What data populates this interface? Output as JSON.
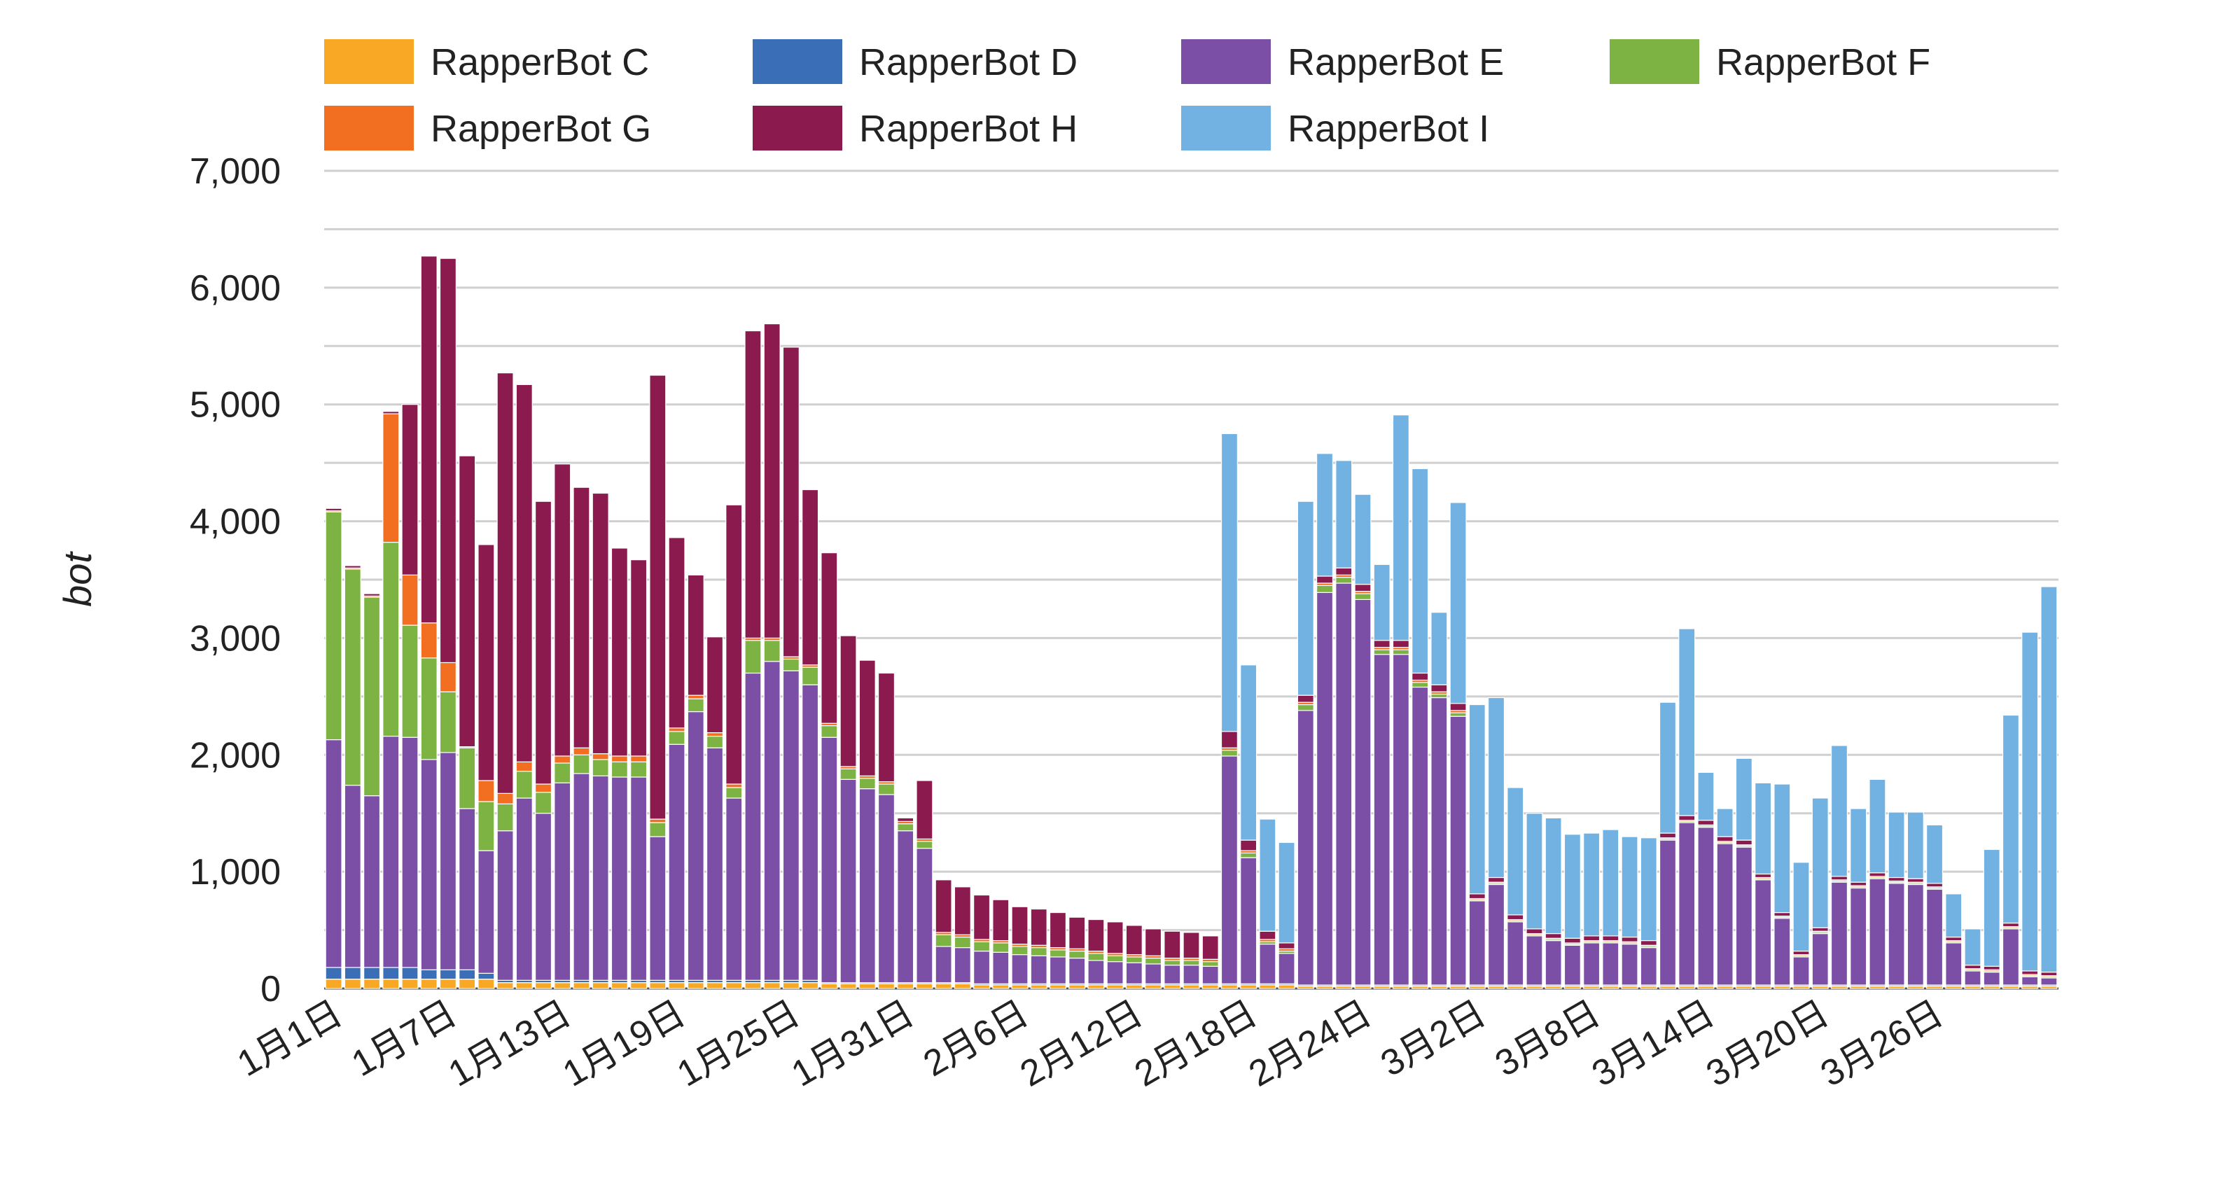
{
  "chart_data": {
    "type": "bar",
    "stacked": true,
    "title": "",
    "xlabel": "",
    "ylabel": "bot",
    "ylim": [
      0,
      7000
    ],
    "yticks": [
      0,
      1000,
      2000,
      3000,
      4000,
      5000,
      6000,
      7000
    ],
    "ytick_labels": [
      "0",
      "1,000",
      "2,000",
      "3,000",
      "4,000",
      "5,000",
      "6,000",
      "7,000"
    ],
    "grid": true,
    "legend_position": "top",
    "x_tick_labels": [
      "1月1日",
      "1月7日",
      "1月13日",
      "1月19日",
      "1月25日",
      "1月31日",
      "2月6日",
      "2月12日",
      "2月18日",
      "2月24日",
      "3月2日",
      "3月8日",
      "3月14日",
      "3月20日",
      "3月26日"
    ],
    "x_tick_every": 6,
    "n_days": 91,
    "colors": {
      "RapperBot C": "#f9a825",
      "RapperBot D": "#3a6fb8",
      "RapperBot E": "#7b4fa6",
      "RapperBot F": "#7cb342",
      "RapperBot G": "#f26f22",
      "RapperBot H": "#8b1a4f",
      "RapperBot I": "#72b2e2"
    },
    "series": [
      {
        "name": "RapperBot C",
        "values": [
          80,
          80,
          80,
          80,
          80,
          80,
          80,
          80,
          80,
          50,
          50,
          50,
          50,
          50,
          50,
          50,
          50,
          50,
          50,
          50,
          50,
          50,
          50,
          50,
          50,
          50,
          40,
          40,
          40,
          40,
          40,
          40,
          40,
          40,
          30,
          30,
          30,
          30,
          30,
          30,
          30,
          30,
          30,
          30,
          30,
          30,
          30,
          30,
          30,
          30,
          30,
          20,
          20,
          20,
          20,
          20,
          20,
          20,
          20,
          20,
          20,
          20,
          20,
          20,
          20,
          20,
          20,
          20,
          20,
          20,
          20,
          20,
          20,
          20,
          20,
          20,
          20,
          20,
          20,
          20,
          20,
          20,
          20,
          20,
          20,
          20,
          20,
          20,
          20,
          20,
          20
        ]
      },
      {
        "name": "RapperBot D",
        "values": [
          100,
          100,
          100,
          100,
          100,
          80,
          80,
          80,
          50,
          20,
          20,
          20,
          20,
          20,
          20,
          20,
          20,
          20,
          20,
          20,
          20,
          20,
          20,
          20,
          20,
          20,
          10,
          10,
          10,
          10,
          10,
          10,
          10,
          10,
          10,
          10,
          10,
          10,
          10,
          10,
          10,
          10,
          10,
          10,
          10,
          10,
          10,
          10,
          10,
          10,
          10,
          10,
          10,
          10,
          10,
          10,
          10,
          10,
          10,
          10,
          10,
          10,
          10,
          10,
          10,
          10,
          10,
          10,
          10,
          10,
          10,
          10,
          10,
          10,
          10,
          10,
          10,
          10,
          10,
          10,
          10,
          10,
          10,
          10,
          10,
          10,
          10,
          10,
          10,
          10,
          10
        ]
      },
      {
        "name": "RapperBot E",
        "values": [
          1950,
          1560,
          1470,
          1980,
          1970,
          1800,
          1860,
          1380,
          1050,
          1280,
          1560,
          1430,
          1690,
          1770,
          1750,
          1740,
          1740,
          1230,
          2020,
          2300,
          1990,
          1560,
          2630,
          2730,
          2650,
          2530,
          2100,
          1740,
          1660,
          1610,
          1300,
          1150,
          310,
          300,
          280,
          270,
          250,
          240,
          230,
          220,
          200,
          190,
          180,
          170,
          160,
          160,
          150,
          1950,
          1080,
          340,
          260,
          2350,
          3360,
          3440,
          3300,
          2830,
          2830,
          2550,
          2460,
          2300,
          720,
          860,
          540,
          420,
          380,
          340,
          360,
          360,
          350,
          320,
          1240,
          1390,
          1350,
          1210,
          1180,
          900,
          570,
          240,
          440,
          880,
          830,
          910,
          870,
          860,
          820,
          360,
          120,
          110,
          480,
          70,
          60
        ]
      },
      {
        "name": "RapperBot F",
        "values": [
          1950,
          1850,
          1700,
          1660,
          960,
          870,
          520,
          520,
          420,
          230,
          230,
          180,
          170,
          160,
          140,
          130,
          130,
          120,
          110,
          110,
          100,
          90,
          280,
          180,
          100,
          150,
          100,
          90,
          90,
          90,
          60,
          60,
          100,
          90,
          80,
          80,
          70,
          70,
          60,
          60,
          60,
          50,
          50,
          50,
          40,
          40,
          40,
          50,
          40,
          20,
          20,
          50,
          60,
          50,
          50,
          40,
          40,
          40,
          30,
          30,
          10,
          10,
          10,
          10,
          10,
          10,
          10,
          10,
          10,
          10,
          10,
          10,
          10,
          10,
          10,
          10,
          10,
          10,
          10,
          10,
          10,
          10,
          10,
          10,
          10,
          10,
          10,
          10,
          10,
          10,
          10
        ]
      },
      {
        "name": "RapperBot G",
        "values": [
          10,
          10,
          10,
          1100,
          430,
          300,
          250,
          10,
          180,
          90,
          80,
          70,
          60,
          60,
          50,
          50,
          50,
          30,
          30,
          30,
          30,
          30,
          20,
          20,
          20,
          20,
          20,
          20,
          20,
          20,
          20,
          20,
          20,
          20,
          20,
          20,
          20,
          20,
          20,
          20,
          20,
          20,
          20,
          20,
          20,
          20,
          20,
          20,
          20,
          20,
          20,
          20,
          20,
          20,
          20,
          20,
          20,
          20,
          20,
          20,
          10,
          10,
          10,
          10,
          10,
          10,
          10,
          10,
          10,
          10,
          10,
          10,
          10,
          10,
          10,
          10,
          10,
          10,
          10,
          10,
          10,
          10,
          10,
          10,
          10,
          10,
          10,
          10,
          10,
          10,
          10
        ]
      },
      {
        "name": "RapperBot H",
        "values": [
          20,
          20,
          20,
          20,
          1460,
          3140,
          3460,
          2490,
          2020,
          3600,
          3230,
          2420,
          2500,
          2230,
          2230,
          1780,
          1680,
          3800,
          1630,
          1030,
          820,
          2390,
          2630,
          2690,
          2650,
          1500,
          1460,
          1120,
          990,
          930,
          30,
          500,
          450,
          410,
          380,
          350,
          320,
          310,
          300,
          270,
          270,
          270,
          250,
          230,
          230,
          220,
          200,
          140,
          90,
          70,
          50,
          60,
          60,
          60,
          60,
          60,
          60,
          60,
          60,
          60,
          40,
          40,
          40,
          40,
          40,
          40,
          40,
          40,
          40,
          40,
          40,
          40,
          40,
          40,
          40,
          30,
          30,
          30,
          30,
          30,
          30,
          30,
          30,
          30,
          30,
          30,
          30,
          30,
          30,
          30,
          30
        ]
      },
      {
        "name": "RapperBot I",
        "values": [
          0,
          0,
          0,
          0,
          0,
          0,
          0,
          0,
          0,
          0,
          0,
          0,
          0,
          0,
          0,
          0,
          0,
          0,
          0,
          0,
          0,
          0,
          0,
          0,
          0,
          0,
          0,
          0,
          0,
          0,
          0,
          0,
          0,
          0,
          0,
          0,
          0,
          0,
          0,
          0,
          0,
          0,
          0,
          0,
          0,
          0,
          0,
          2550,
          1500,
          960,
          860,
          1660,
          1050,
          920,
          770,
          650,
          1930,
          1750,
          620,
          1720,
          1620,
          1540,
          1090,
          990,
          990,
          890,
          880,
          910,
          860,
          880,
          1120,
          1600,
          410,
          240,
          700,
          780,
          1100,
          760,
          1110,
          1120,
          630,
          800,
          560,
          570,
          500,
          370,
          310,
          1000,
          1780,
          2900,
          3300
        ]
      }
    ],
    "legend": [
      "RapperBot C",
      "RapperBot D",
      "RapperBot E",
      "RapperBot F",
      "RapperBot G",
      "RapperBot H",
      "RapperBot I"
    ]
  }
}
